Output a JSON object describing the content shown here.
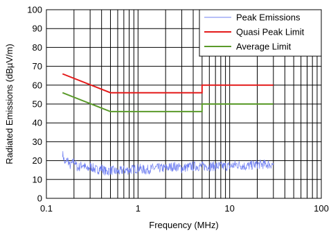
{
  "chart_data": {
    "type": "line",
    "title": "",
    "xlabel": "Frequency (MHz)",
    "ylabel": "Radiated Emissions (dBµV/m)",
    "xscale": "log",
    "xlim": [
      0.1,
      100
    ],
    "ylim": [
      0,
      100
    ],
    "x_ticks": [
      0.1,
      1,
      10,
      100
    ],
    "x_tick_labels": [
      "0.1",
      "1",
      "10",
      "100"
    ],
    "y_ticks": [
      0,
      10,
      20,
      30,
      40,
      50,
      60,
      70,
      80,
      90,
      100
    ],
    "y_tick_labels": [
      "0",
      "10",
      "20",
      "30",
      "40",
      "50",
      "60",
      "70",
      "80",
      "90",
      "100"
    ],
    "grid": true,
    "legend_position": "top-right",
    "series": [
      {
        "name": "Peak Emissions",
        "color": "#6f7ff2",
        "x": [
          0.15,
          0.16,
          0.17,
          0.18,
          0.2,
          0.22,
          0.25,
          0.28,
          0.3,
          0.35,
          0.4,
          0.45,
          0.5,
          0.6,
          0.7,
          0.8,
          1,
          1.2,
          1.5,
          2,
          2.5,
          3,
          4,
          5,
          6,
          8,
          10,
          12,
          15,
          20,
          25,
          30
        ],
        "y": [
          24,
          18,
          21,
          17,
          20,
          16,
          18,
          15,
          17,
          15,
          16,
          14,
          15,
          14,
          15,
          15,
          16,
          15,
          16,
          16,
          17,
          16,
          17,
          17,
          17,
          17,
          17,
          18,
          17,
          18,
          18,
          18
        ]
      },
      {
        "name": "Quasi Peak Limit",
        "color": "#e41a1a",
        "x": [
          0.15,
          0.5,
          5,
          5,
          30
        ],
        "y": [
          66,
          56,
          56,
          60,
          60
        ]
      },
      {
        "name": "Average Limit",
        "color": "#5a9a2a",
        "x": [
          0.15,
          0.5,
          5,
          5,
          30
        ],
        "y": [
          56,
          46,
          46,
          50,
          50
        ]
      }
    ]
  }
}
